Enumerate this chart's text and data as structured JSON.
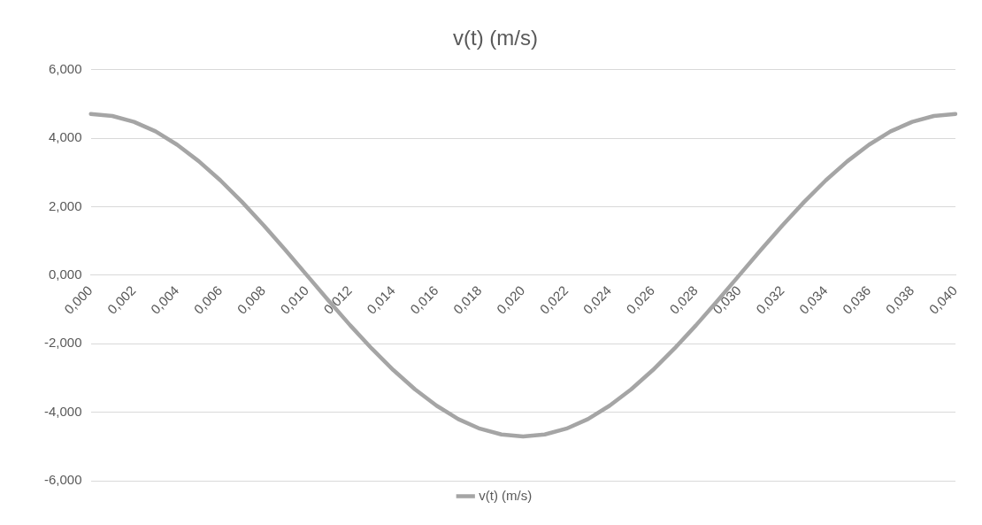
{
  "chart_data": {
    "type": "line",
    "title": "v(t) (m/s)",
    "categories": [
      "0,000",
      null,
      "0,002",
      null,
      "0,004",
      null,
      "0,006",
      null,
      "0,008",
      null,
      "0,010",
      null,
      "0,012",
      null,
      "0,014",
      null,
      "0,016",
      null,
      "0,018",
      null,
      "0,020",
      null,
      "0,022",
      null,
      "0,024",
      null,
      "0,026",
      null,
      "0,028",
      null,
      "0,030",
      null,
      "0,032",
      null,
      "0,034",
      null,
      "0,036",
      null,
      "0,038",
      null,
      "0,040"
    ],
    "series": [
      {
        "name": "v(t) (m/s)",
        "color": "#a5a5a5",
        "values": [
          4.71,
          4.65,
          4.48,
          4.2,
          3.81,
          3.33,
          2.77,
          2.14,
          1.46,
          0.74,
          0,
          -0.74,
          -1.46,
          -2.14,
          -2.77,
          -3.33,
          -3.81,
          -4.2,
          -4.48,
          -4.65,
          -4.71,
          -4.65,
          -4.48,
          -4.2,
          -3.81,
          -3.33,
          -2.77,
          -2.14,
          -1.46,
          -0.74,
          0,
          0.74,
          1.46,
          2.14,
          2.77,
          3.33,
          3.81,
          4.2,
          4.48,
          4.65,
          4.71
        ]
      }
    ],
    "ylim": [
      -6,
      6
    ],
    "yticks": [
      {
        "value": -6,
        "label": "-6,000"
      },
      {
        "value": -4,
        "label": "-4,000"
      },
      {
        "value": -2,
        "label": "-2,000"
      },
      {
        "value": 0,
        "label": "0,000"
      },
      {
        "value": 2,
        "label": "2,000"
      },
      {
        "value": 4,
        "label": "4,000"
      },
      {
        "value": 6,
        "label": "6,000"
      }
    ],
    "grid": "y",
    "legend": "bottom",
    "marker": "none"
  }
}
